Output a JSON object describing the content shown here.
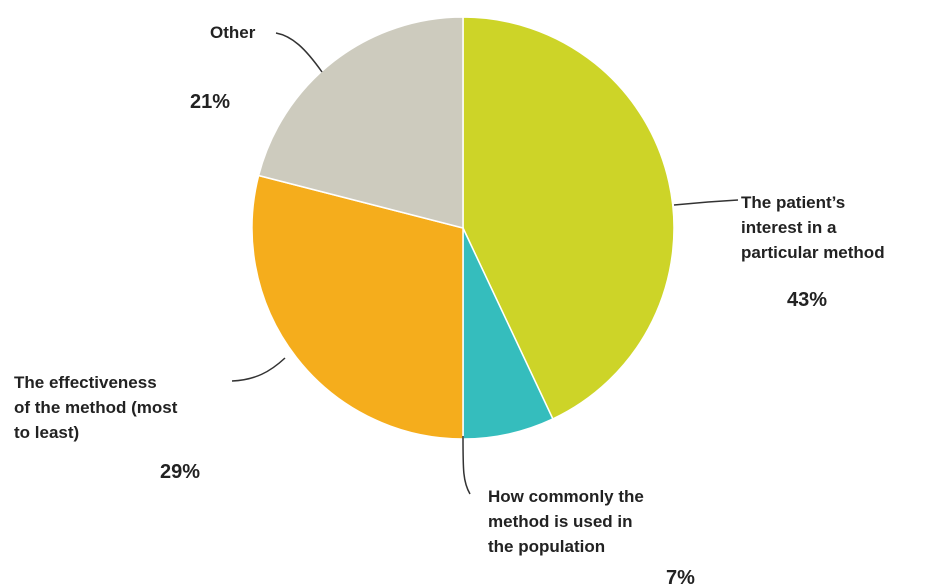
{
  "chart_data": {
    "type": "pie",
    "slices": [
      {
        "label_lines": [
          "The patient’s",
          "interest in a",
          "particular method"
        ],
        "value": 43,
        "value_label": "43%",
        "color": "#cdd428"
      },
      {
        "label_lines": [
          "How commonly the",
          "method is used in",
          "the population"
        ],
        "value": 7,
        "value_label": "7%",
        "color": "#35bdbd"
      },
      {
        "label_lines": [
          "The effectiveness",
          "of the method (most",
          "to least)"
        ],
        "value": 29,
        "value_label": "29%",
        "color": "#f5ad1c"
      },
      {
        "label_lines": [
          "Other"
        ],
        "value": 21,
        "value_label": "21%",
        "color": "#cdcbbe"
      }
    ],
    "title": "",
    "legend": "none"
  }
}
